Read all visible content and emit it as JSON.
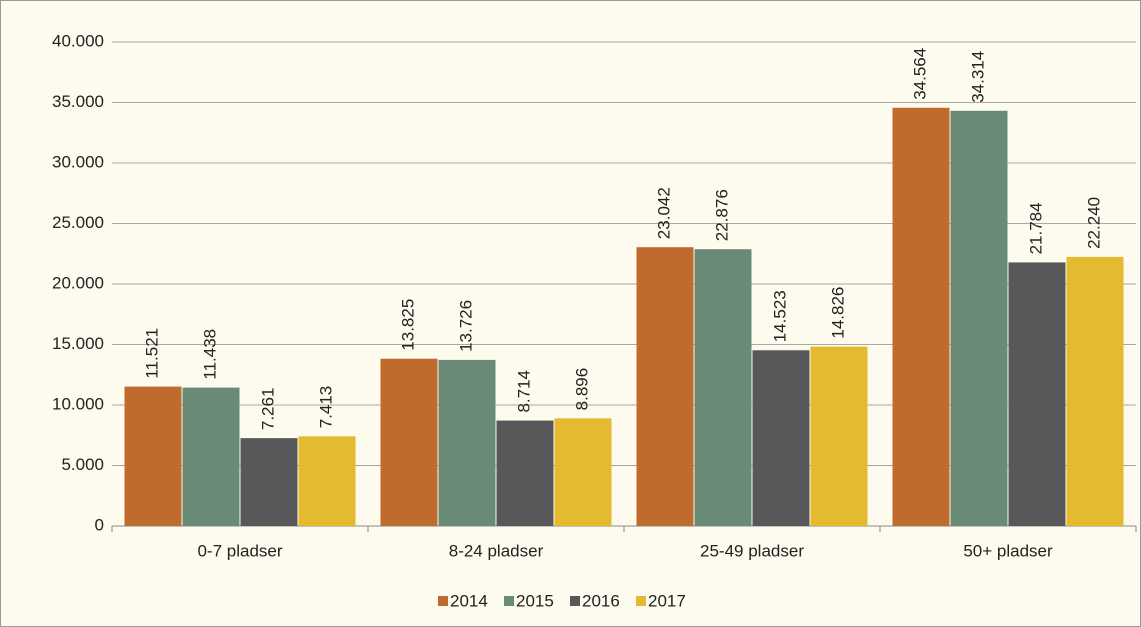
{
  "chart_data": {
    "type": "bar",
    "categories": [
      "0-7 pladser",
      "8-24 pladser",
      "25-49 pladser",
      "50+ pladser"
    ],
    "series": [
      {
        "name": "2014",
        "color": "#c06b2e",
        "values": [
          11521,
          13825,
          23042,
          34564
        ],
        "value_labels": [
          "11.521",
          "13.825",
          "23.042",
          "34.564"
        ]
      },
      {
        "name": "2015",
        "color": "#6a8a78",
        "values": [
          11438,
          13726,
          22876,
          34314
        ],
        "value_labels": [
          "11.438",
          "13.726",
          "22.876",
          "34.314"
        ]
      },
      {
        "name": "2016",
        "color": "#58585a",
        "values": [
          7261,
          8714,
          14523,
          21784
        ],
        "value_labels": [
          "7.261",
          "8.714",
          "14.523",
          "21.784"
        ]
      },
      {
        "name": "2017",
        "color": "#e4bb30",
        "values": [
          7413,
          8896,
          14826,
          22240
        ],
        "value_labels": [
          "7.413",
          "8.896",
          "14.826",
          "22.240"
        ]
      }
    ],
    "ylim": [
      0,
      40000
    ],
    "yticks": [
      0,
      {
        "value": 5000,
        "label": "5.000"
      },
      {
        "value": 10000,
        "label": "10.000"
      },
      {
        "value": 15000,
        "label": "15.000"
      },
      {
        "value": 20000,
        "label": "20.000"
      },
      {
        "value": 25000,
        "label": "25.000"
      },
      {
        "value": 30000,
        "label": "30.000"
      },
      {
        "value": 35000,
        "label": "35.000"
      },
      {
        "value": 40000,
        "label": "40.000"
      }
    ],
    "grid": true,
    "legend": "bottom"
  }
}
